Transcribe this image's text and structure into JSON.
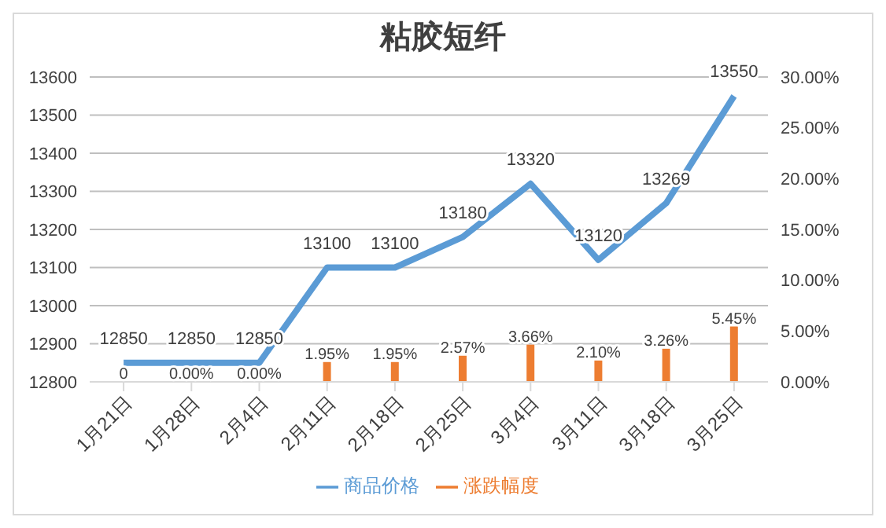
{
  "chart_data": {
    "type": "bar",
    "title": "粘胶短纤",
    "categories": [
      "1月21日",
      "1月28日",
      "2月4日",
      "2月11日",
      "2月18日",
      "2月25日",
      "3月4日",
      "3月11日",
      "3月18日",
      "3月25日"
    ],
    "series": [
      {
        "name": "涨跌幅度",
        "axis": "y2",
        "color": "#ed7d31",
        "values": [
          0,
          0,
          0,
          1.95,
          1.95,
          2.57,
          3.66,
          2.1,
          3.26,
          5.45
        ],
        "value_labels": [
          "0",
          "0.00%",
          "0.00%",
          "1.95%",
          "1.95%",
          "2.57%",
          "3.66%",
          "2.10%",
          "3.26%",
          "5.45%"
        ]
      },
      {
        "name": "商品价格",
        "type": "line",
        "color": "#5b9bd5",
        "values": [
          12850,
          12850,
          12850,
          13100,
          13100,
          13180,
          13320,
          13120,
          13269,
          13550
        ],
        "value_labels": [
          "12850",
          "12850",
          "12850",
          "13100",
          "13100",
          "13180",
          "13320",
          "13120",
          "13269",
          "13550"
        ]
      }
    ],
    "ylim": [
      12800,
      13600
    ],
    "yticks": [
      12800,
      12900,
      13000,
      13100,
      13200,
      13300,
      13400,
      13500,
      13600
    ],
    "y2lim": [
      0,
      30
    ],
    "y2ticks": [
      {
        "value": 0,
        "label": "0.00%"
      },
      {
        "value": 5,
        "label": "5.00%"
      },
      {
        "value": 10,
        "label": "10.00%"
      },
      {
        "value": 15,
        "label": "15.00%"
      },
      {
        "value": 20,
        "label": "20.00%"
      },
      {
        "value": 25,
        "label": "25.00%"
      },
      {
        "value": 30,
        "label": "30.00%"
      }
    ],
    "grid": "y",
    "legend": "bottom",
    "marker": "none"
  }
}
